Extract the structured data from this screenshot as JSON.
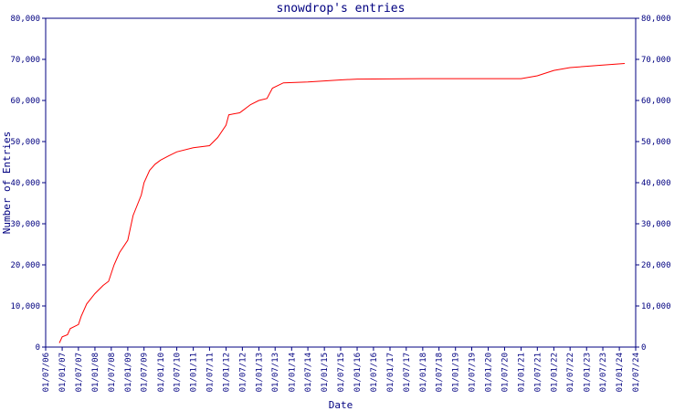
{
  "chart_data": {
    "type": "line",
    "title": "snowdrop's entries",
    "x_label": "Date",
    "y_label": "Number of Entries",
    "x": [
      "2006-12-01",
      "2007-01-01",
      "2007-03-01",
      "2007-04-01",
      "2007-07-01",
      "2007-08-01",
      "2007-10-01",
      "2008-01-01",
      "2008-04-01",
      "2008-06-01",
      "2008-08-01",
      "2008-10-01",
      "2009-01-01",
      "2009-03-01",
      "2009-06-01",
      "2009-07-01",
      "2009-09-01",
      "2009-11-01",
      "2010-01-01",
      "2010-04-01",
      "2010-07-01",
      "2011-01-01",
      "2011-07-01",
      "2011-10-01",
      "2012-01-01",
      "2012-02-01",
      "2012-06-01",
      "2012-07-01",
      "2012-10-01",
      "2013-01-01",
      "2013-04-01",
      "2013-06-01",
      "2013-10-01",
      "2014-07-01",
      "2015-07-01",
      "2016-01-01",
      "2018-01-01",
      "2021-01-01",
      "2021-07-01",
      "2022-01-01",
      "2022-07-01",
      "2023-07-01",
      "2024-03-01"
    ],
    "series": [
      {
        "name": "Entries",
        "color": "#ff0000",
        "values": [
          1000,
          2500,
          3000,
          4500,
          5500,
          7500,
          10500,
          13000,
          15000,
          16000,
          20000,
          23000,
          26000,
          32000,
          37000,
          40000,
          43000,
          44500,
          45500,
          46500,
          47500,
          48500,
          49000,
          51000,
          54000,
          56500,
          57000,
          57500,
          59000,
          60000,
          60500,
          63000,
          64300,
          64500,
          65000,
          65200,
          65300,
          65300,
          66000,
          67300,
          68000,
          68600,
          69000
        ]
      }
    ],
    "xlim": [
      "2006-07-01",
      "2024-07-01"
    ],
    "xticks": [
      {
        "value": "2006-07-01",
        "label": "01/07/06"
      },
      {
        "value": "2007-01-01",
        "label": "01/01/07"
      },
      {
        "value": "2007-07-01",
        "label": "01/07/07"
      },
      {
        "value": "2008-01-01",
        "label": "01/01/08"
      },
      {
        "value": "2008-07-01",
        "label": "01/07/08"
      },
      {
        "value": "2009-01-01",
        "label": "01/01/09"
      },
      {
        "value": "2009-07-01",
        "label": "01/07/09"
      },
      {
        "value": "2010-01-01",
        "label": "01/01/10"
      },
      {
        "value": "2010-07-01",
        "label": "01/07/10"
      },
      {
        "value": "2011-01-01",
        "label": "01/01/11"
      },
      {
        "value": "2011-07-01",
        "label": "01/07/11"
      },
      {
        "value": "2012-01-01",
        "label": "01/01/12"
      },
      {
        "value": "2012-07-01",
        "label": "01/07/12"
      },
      {
        "value": "2013-01-01",
        "label": "01/01/13"
      },
      {
        "value": "2013-07-01",
        "label": "01/07/13"
      },
      {
        "value": "2014-01-01",
        "label": "01/01/14"
      },
      {
        "value": "2014-07-01",
        "label": "01/07/14"
      },
      {
        "value": "2015-01-01",
        "label": "01/01/15"
      },
      {
        "value": "2015-07-01",
        "label": "01/07/15"
      },
      {
        "value": "2016-01-01",
        "label": "01/01/16"
      },
      {
        "value": "2016-07-01",
        "label": "01/07/16"
      },
      {
        "value": "2017-01-01",
        "label": "01/01/17"
      },
      {
        "value": "2017-07-01",
        "label": "01/07/17"
      },
      {
        "value": "2018-01-01",
        "label": "01/01/18"
      },
      {
        "value": "2018-07-01",
        "label": "01/07/18"
      },
      {
        "value": "2019-01-01",
        "label": "01/01/19"
      },
      {
        "value": "2019-07-01",
        "label": "01/07/19"
      },
      {
        "value": "2020-01-01",
        "label": "01/01/20"
      },
      {
        "value": "2020-07-01",
        "label": "01/07/20"
      },
      {
        "value": "2021-01-01",
        "label": "01/01/21"
      },
      {
        "value": "2021-07-01",
        "label": "01/07/21"
      },
      {
        "value": "2022-01-01",
        "label": "01/01/22"
      },
      {
        "value": "2022-07-01",
        "label": "01/07/22"
      },
      {
        "value": "2023-01-01",
        "label": "01/01/23"
      },
      {
        "value": "2023-07-01",
        "label": "01/07/23"
      },
      {
        "value": "2024-01-01",
        "label": "01/01/24"
      },
      {
        "value": "2024-07-01",
        "label": "01/07/24"
      }
    ],
    "ylim": [
      0,
      80000
    ],
    "yticks": [
      0,
      {
        "value": 10000,
        "label": "10,000"
      },
      {
        "value": 20000,
        "label": "20,000"
      },
      {
        "value": 30000,
        "label": "30,000"
      },
      {
        "value": 40000,
        "label": "40,000"
      },
      {
        "value": 50000,
        "label": "50,000"
      },
      {
        "value": 60000,
        "label": "60,000"
      },
      {
        "value": 70000,
        "label": "70,000"
      },
      {
        "value": 80000,
        "label": "80,000"
      }
    ],
    "axis_color": "#000080"
  }
}
